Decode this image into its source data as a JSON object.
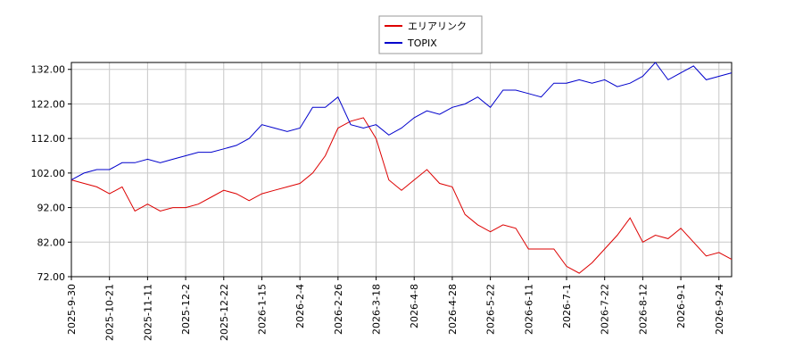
{
  "chart_data": {
    "type": "line",
    "categories": [
      "2025-9-30",
      null,
      null,
      "2025-10-21",
      null,
      null,
      "2025-11-11",
      null,
      null,
      "2025-12-2",
      null,
      null,
      "2025-12-22",
      null,
      null,
      "2026-1-15",
      null,
      null,
      "2026-2-4",
      null,
      null,
      "2026-2-26",
      null,
      null,
      "2026-3-18",
      null,
      null,
      "2026-4-8",
      null,
      null,
      "2026-4-28",
      null,
      null,
      "2026-5-22",
      null,
      null,
      "2026-6-11",
      null,
      null,
      "2026-7-1",
      null,
      null,
      "2026-7-22",
      null,
      null,
      "2026-8-12",
      null,
      null,
      "2026-9-1",
      null,
      null,
      "2026-9-24",
      null
    ],
    "series": [
      {
        "name": "エリアリンク",
        "color": "#dd0000",
        "values": [
          100,
          99,
          98,
          96,
          98,
          91,
          93,
          91,
          92,
          92,
          93,
          95,
          97,
          96,
          94,
          96,
          97,
          98,
          99,
          102,
          107,
          115,
          117,
          118,
          112,
          100,
          97,
          100,
          103,
          99,
          98,
          90,
          87,
          85,
          87,
          86,
          80,
          80,
          80,
          75,
          73,
          76,
          80,
          84,
          89,
          82,
          84,
          83,
          86,
          82,
          78,
          79,
          77
        ]
      },
      {
        "name": "TOPIX",
        "color": "#0000cc",
        "values": [
          100,
          102,
          103,
          103,
          105,
          105,
          106,
          105,
          106,
          107,
          108,
          108,
          109,
          110,
          112,
          116,
          115,
          114,
          115,
          121,
          121,
          124,
          116,
          115,
          116,
          113,
          115,
          118,
          120,
          119,
          121,
          122,
          124,
          121,
          126,
          126,
          125,
          124,
          128,
          128,
          129,
          128,
          129,
          127,
          128,
          130,
          134,
          129,
          131,
          133,
          129,
          130,
          131
        ]
      }
    ],
    "ylim": [
      72,
      134
    ],
    "yticks": [
      {
        "value": 72,
        "label": "72.00"
      },
      {
        "value": 82,
        "label": "82.00"
      },
      {
        "value": 92,
        "label": "92.00"
      },
      {
        "value": 102,
        "label": "102.00"
      },
      {
        "value": 112,
        "label": "112.00"
      },
      {
        "value": 122,
        "label": "122.00"
      },
      {
        "value": 132,
        "label": "132.00"
      }
    ],
    "grid": true,
    "legend": "top"
  }
}
